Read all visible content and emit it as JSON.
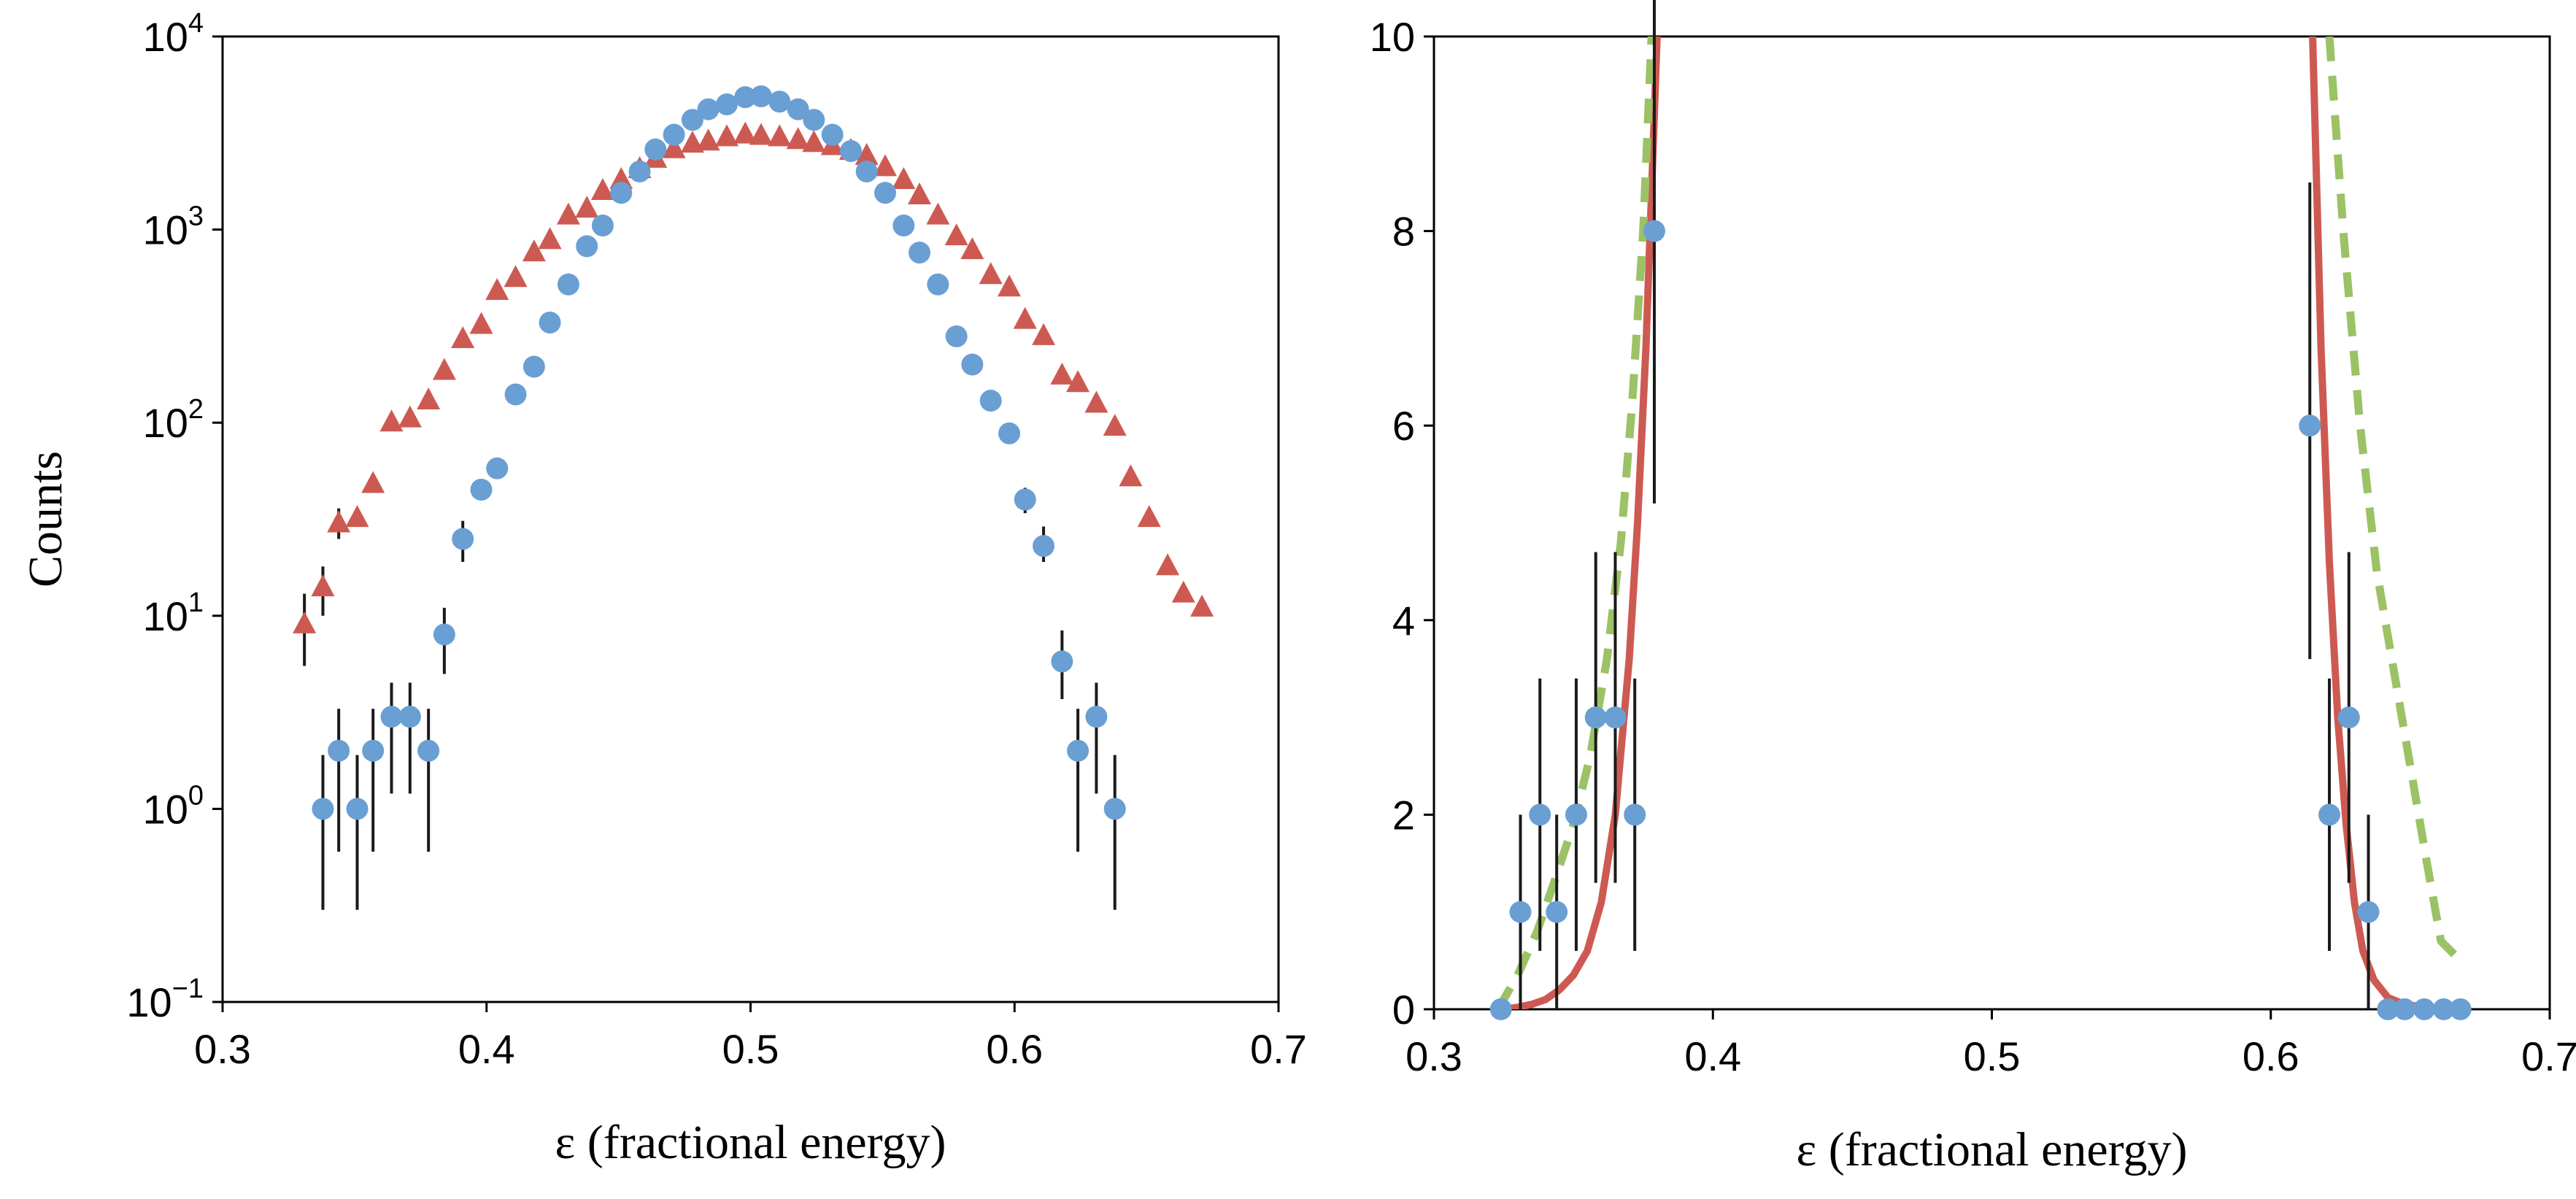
{
  "colors": {
    "blue": "#6a9fd4",
    "red": "#cd5a52",
    "green": "#9bc265",
    "errorbar": "#1a1a1a"
  },
  "chart_data": [
    {
      "type": "scatter",
      "title": "",
      "xlabel": "ε (fractional energy)",
      "ylabel": "Counts",
      "xlim": [
        0.3,
        0.7
      ],
      "xticks": [
        0.3,
        0.4,
        0.5,
        0.6,
        0.7
      ],
      "yscale": "log",
      "ylim": [
        0.1,
        10000
      ],
      "yticks": [
        {
          "value": 0.1,
          "base": "10",
          "exp": "−1"
        },
        {
          "value": 1,
          "base": "10",
          "exp": "0"
        },
        {
          "value": 10,
          "base": "10",
          "exp": "1"
        },
        {
          "value": 100,
          "base": "10",
          "exp": "2"
        },
        {
          "value": 1000,
          "base": "10",
          "exp": "3"
        },
        {
          "value": 10000,
          "base": "10",
          "exp": "4"
        }
      ],
      "grid": false,
      "legend": "none",
      "series": [
        {
          "marker": "triangle",
          "color": "#cd5a52",
          "x": [
            0.331,
            0.338,
            0.344,
            0.351,
            0.357,
            0.364,
            0.371,
            0.378,
            0.384,
            0.391,
            0.398,
            0.404,
            0.411,
            0.418,
            0.424,
            0.431,
            0.438,
            0.444,
            0.451,
            0.458,
            0.464,
            0.471,
            0.478,
            0.484,
            0.491,
            0.498,
            0.504,
            0.511,
            0.518,
            0.524,
            0.531,
            0.538,
            0.544,
            0.551,
            0.558,
            0.564,
            0.571,
            0.578,
            0.584,
            0.591,
            0.598,
            0.604,
            0.611,
            0.618,
            0.624,
            0.631,
            0.638,
            0.644,
            0.651,
            0.658,
            0.664,
            0.671
          ],
          "y": [
            9,
            14,
            30,
            32,
            48,
            100,
            105,
            130,
            185,
            270,
            320,
            480,
            560,
            760,
            880,
            1180,
            1280,
            1580,
            1800,
            2050,
            2320,
            2600,
            2780,
            2850,
            3000,
            3100,
            3050,
            3000,
            2900,
            2800,
            2700,
            2550,
            2400,
            2100,
            1800,
            1500,
            1180,
            920,
            780,
            580,
            500,
            340,
            280,
            175,
            160,
            125,
            95,
            52,
            32,
            18,
            13,
            11
          ],
          "yerr": [
            [
              5.5,
              13
            ],
            [
              10,
              18
            ],
            [
              25,
              36
            ],
            [
              0,
              0
            ],
            [
              0,
              0
            ],
            [
              0,
              0
            ],
            [
              0,
              0
            ],
            [
              0,
              0
            ],
            [
              0,
              0
            ],
            [
              0,
              0
            ],
            [
              0,
              0
            ],
            [
              0,
              0
            ],
            [
              0,
              0
            ],
            [
              0,
              0
            ],
            [
              0,
              0
            ],
            [
              0,
              0
            ],
            [
              0,
              0
            ],
            [
              0,
              0
            ],
            [
              0,
              0
            ],
            [
              0,
              0
            ],
            [
              0,
              0
            ],
            [
              0,
              0
            ],
            [
              0,
              0
            ],
            [
              0,
              0
            ],
            [
              0,
              0
            ],
            [
              0,
              0
            ],
            [
              0,
              0
            ],
            [
              0,
              0
            ],
            [
              0,
              0
            ],
            [
              0,
              0
            ],
            [
              0,
              0
            ],
            [
              0,
              0
            ],
            [
              0,
              0
            ],
            [
              0,
              0
            ],
            [
              0,
              0
            ],
            [
              0,
              0
            ],
            [
              0,
              0
            ],
            [
              0,
              0
            ],
            [
              0,
              0
            ],
            [
              0,
              0
            ],
            [
              0,
              0
            ],
            [
              0,
              0
            ],
            [
              0,
              0
            ],
            [
              0,
              0
            ],
            [
              0,
              0
            ],
            [
              0,
              0
            ],
            [
              0,
              0
            ],
            [
              0,
              0
            ],
            [
              0,
              0
            ],
            [
              0,
              0
            ],
            [
              0,
              0
            ],
            [
              0,
              0
            ]
          ]
        },
        {
          "marker": "circle",
          "color": "#6a9fd4",
          "x": [
            0.338,
            0.344,
            0.351,
            0.357,
            0.364,
            0.371,
            0.378,
            0.384,
            0.391,
            0.398,
            0.404,
            0.411,
            0.418,
            0.424,
            0.431,
            0.438,
            0.444,
            0.451,
            0.458,
            0.464,
            0.471,
            0.478,
            0.484,
            0.491,
            0.498,
            0.504,
            0.511,
            0.518,
            0.524,
            0.531,
            0.538,
            0.544,
            0.551,
            0.558,
            0.564,
            0.571,
            0.578,
            0.584,
            0.591,
            0.598,
            0.604,
            0.611,
            0.618,
            0.624,
            0.631,
            0.638
          ],
          "y": [
            1,
            2,
            1,
            2,
            3,
            3,
            2,
            8,
            25,
            45,
            58,
            140,
            195,
            330,
            520,
            820,
            1050,
            1550,
            2000,
            2600,
            3100,
            3700,
            4200,
            4450,
            4850,
            4900,
            4600,
            4200,
            3700,
            3100,
            2550,
            2000,
            1550,
            1050,
            760,
            520,
            280,
            200,
            130,
            88,
            40,
            23,
            5.8,
            2,
            3,
            1
          ],
          "yerr": [
            [
              0.3,
              1.9
            ],
            [
              0.6,
              3.3
            ],
            [
              0.3,
              1.9
            ],
            [
              0.6,
              3.3
            ],
            [
              1.2,
              4.5
            ],
            [
              1.2,
              4.5
            ],
            [
              0.6,
              3.3
            ],
            [
              5,
              11
            ],
            [
              19,
              31
            ],
            [
              0,
              0
            ],
            [
              0,
              0
            ],
            [
              0,
              0
            ],
            [
              0,
              0
            ],
            [
              0,
              0
            ],
            [
              0,
              0
            ],
            [
              0,
              0
            ],
            [
              0,
              0
            ],
            [
              0,
              0
            ],
            [
              0,
              0
            ],
            [
              0,
              0
            ],
            [
              0,
              0
            ],
            [
              0,
              0
            ],
            [
              0,
              0
            ],
            [
              0,
              0
            ],
            [
              0,
              0
            ],
            [
              0,
              0
            ],
            [
              0,
              0
            ],
            [
              0,
              0
            ],
            [
              0,
              0
            ],
            [
              0,
              0
            ],
            [
              0,
              0
            ],
            [
              0,
              0
            ],
            [
              0,
              0
            ],
            [
              0,
              0
            ],
            [
              0,
              0
            ],
            [
              0,
              0
            ],
            [
              0,
              0
            ],
            [
              0,
              0
            ],
            [
              0,
              0
            ],
            [
              0,
              0
            ],
            [
              34,
              46
            ],
            [
              19,
              29
            ],
            [
              3.7,
              8.4
            ],
            [
              0.6,
              3.3
            ],
            [
              1.2,
              4.5
            ],
            [
              0.3,
              1.9
            ]
          ]
        }
      ]
    },
    {
      "type": "scatter",
      "title": "",
      "xlabel": "ε (fractional energy)",
      "ylabel": "",
      "xlim": [
        0.3,
        0.7
      ],
      "xticks": [
        0.3,
        0.4,
        0.5,
        0.6,
        0.7
      ],
      "yscale": "linear",
      "ylim": [
        0,
        10
      ],
      "yticks": [
        0,
        2,
        4,
        6,
        8,
        10
      ],
      "grid": false,
      "legend": "none",
      "series": [
        {
          "marker": "circle",
          "color": "#6a9fd4",
          "x": [
            0.324,
            0.331,
            0.338,
            0.344,
            0.351,
            0.358,
            0.365,
            0.372,
            0.379,
            0.614,
            0.621,
            0.628,
            0.635,
            0.642,
            0.648,
            0.655,
            0.662,
            0.668
          ],
          "y": [
            0,
            1,
            2,
            1,
            2,
            3,
            3,
            2,
            8,
            6,
            2,
            3,
            1,
            0,
            0,
            0,
            0,
            0
          ],
          "yerr": [
            [
              0,
              0
            ],
            [
              0,
              2
            ],
            [
              0.6,
              3.4
            ],
            [
              0,
              2
            ],
            [
              0.6,
              3.4
            ],
            [
              1.3,
              4.7
            ],
            [
              1.3,
              4.7
            ],
            [
              0.6,
              3.4
            ],
            [
              5.2,
              10.8
            ],
            [
              3.6,
              8.5
            ],
            [
              0.6,
              3.4
            ],
            [
              1.3,
              4.7
            ],
            [
              0,
              2
            ],
            [
              0,
              0
            ],
            [
              0,
              0
            ],
            [
              0,
              0
            ],
            [
              0,
              0
            ],
            [
              0,
              0
            ]
          ]
        },
        {
          "marker": "line",
          "style": "solid",
          "color": "#cd5a52",
          "x": [
            0.325,
            0.33,
            0.335,
            0.34,
            0.345,
            0.35,
            0.355,
            0.36,
            0.365,
            0.37,
            0.373,
            0.376,
            0.378,
            0.38
          ],
          "y": [
            0,
            0.02,
            0.05,
            0.1,
            0.2,
            0.35,
            0.6,
            1.1,
            2.0,
            3.6,
            5.0,
            6.8,
            8.4,
            10
          ]
        },
        {
          "marker": "line",
          "style": "solid",
          "color": "#cd5a52",
          "x": [
            0.615,
            0.618,
            0.621,
            0.624,
            0.627,
            0.63,
            0.633,
            0.637,
            0.642,
            0.648,
            0.655,
            0.662,
            0.668
          ],
          "y": [
            10,
            6.8,
            4.6,
            3.0,
            1.9,
            1.1,
            0.6,
            0.3,
            0.12,
            0.05,
            0.02,
            0.01,
            0
          ]
        },
        {
          "marker": "line",
          "style": "dashed",
          "color": "#9bc265",
          "x": [
            0.323,
            0.33,
            0.337,
            0.343,
            0.35,
            0.356,
            0.362,
            0.367,
            0.371,
            0.375,
            0.378
          ],
          "y": [
            0,
            0.35,
            0.8,
            1.3,
            1.9,
            2.6,
            3.6,
            4.8,
            6.2,
            8.0,
            10
          ]
        },
        {
          "marker": "line",
          "style": "dashed",
          "color": "#9bc265",
          "x": [
            0.621,
            0.626,
            0.632,
            0.638,
            0.644,
            0.65,
            0.656,
            0.661,
            0.668
          ],
          "y": [
            10,
            8.0,
            6.0,
            4.5,
            3.5,
            2.5,
            1.5,
            0.7,
            0.5
          ]
        }
      ]
    }
  ]
}
